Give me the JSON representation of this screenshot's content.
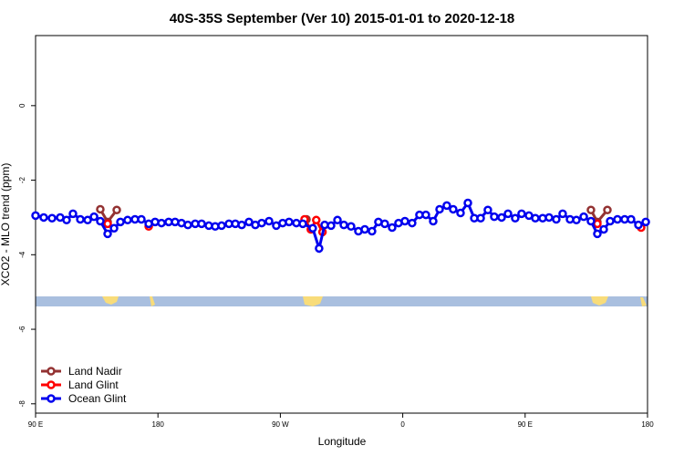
{
  "chart_data": {
    "type": "line",
    "title": "40S-35S September (Ver 10)   2015-01-01 to 2020-12-18",
    "x_label": "Longitude",
    "y_label": "XCO2 - MLO trend (ppm)",
    "xlim": [
      90,
      540
    ],
    "ylim": [
      -8.25,
      1.88
    ],
    "xticks": [
      {
        "value": 90,
        "label": "90 E"
      },
      {
        "value": 180,
        "label": "180"
      },
      {
        "value": 270,
        "label": "90 W"
      },
      {
        "value": 360,
        "label": "0"
      },
      {
        "value": 450,
        "label": "90 E"
      },
      {
        "value": 540,
        "label": "180"
      }
    ],
    "yticks": [
      0,
      -2,
      -4,
      -6,
      -8
    ],
    "legend": "bottom-left",
    "series": [
      {
        "name": "Land Nadir",
        "color": "#933232",
        "x": [
          137.6,
          143,
          149.7,
          220,
          289.2,
          400,
          498.4,
          503.1,
          510.5
        ],
        "values": [
          -2.78,
          -3.12,
          -2.8,
          null,
          -3.05,
          null,
          -2.8,
          -3.12,
          -2.8
        ]
      },
      {
        "name": "Land Glint",
        "color": "#ff0000",
        "x": [
          143,
          158,
          173.2,
          230,
          287.8,
          292.4,
          296.4,
          301,
          400,
          503.1,
          520,
          535.3
        ],
        "values": [
          -3.17,
          null,
          -3.24,
          null,
          -3.05,
          -3.32,
          -3.07,
          -3.39,
          null,
          -3.17,
          null,
          -3.27
        ]
      },
      {
        "name": "Ocean Glint",
        "color": "#0000ee",
        "x": [
          90,
          96,
          102.1,
          108.1,
          112.8,
          117.5,
          122.9,
          128.3,
          133,
          137.6,
          143,
          147.7,
          152.4,
          157.7,
          163.1,
          167.8,
          173.2,
          177.9,
          182.6,
          187.9,
          192.6,
          197.3,
          202,
          207.4,
          212.1,
          217.4,
          222.1,
          226.8,
          232.2,
          236.9,
          241.6,
          246.9,
          251.6,
          256.3,
          261.7,
          267,
          271.7,
          276.4,
          281.8,
          286.5,
          293.8,
          298.5,
          302.6,
          307.3,
          312,
          316.7,
          322,
          327.4,
          332.1,
          337.4,
          342.1,
          346.8,
          352.2,
          356.9,
          361.6,
          366.9,
          372.3,
          377,
          382.4,
          387.1,
          392.4,
          397.1,
          402.5,
          407.9,
          412.6,
          417.3,
          422.6,
          427.3,
          432.7,
          437.4,
          442.7,
          447.4,
          452.8,
          457.5,
          462.9,
          467.6,
          472.9,
          477.6,
          483,
          487.7,
          493.1,
          498.4,
          503.1,
          507.8,
          512.5,
          517.9,
          523.2,
          527.9,
          533.3,
          538.7
        ],
        "values": [
          -2.95,
          -3.0,
          -3.02,
          -3.0,
          -3.07,
          -2.9,
          -3.05,
          -3.07,
          -2.98,
          -3.1,
          -3.44,
          -3.29,
          -3.12,
          -3.07,
          -3.05,
          -3.05,
          -3.17,
          -3.12,
          -3.15,
          -3.12,
          -3.12,
          -3.15,
          -3.2,
          -3.17,
          -3.17,
          -3.22,
          -3.24,
          -3.22,
          -3.17,
          -3.17,
          -3.2,
          -3.12,
          -3.2,
          -3.15,
          -3.1,
          -3.22,
          -3.15,
          -3.12,
          -3.15,
          -3.17,
          -3.29,
          -3.83,
          -3.2,
          -3.22,
          -3.07,
          -3.2,
          -3.24,
          -3.37,
          -3.32,
          -3.37,
          -3.12,
          -3.17,
          -3.27,
          -3.15,
          -3.1,
          -3.15,
          -2.93,
          -2.93,
          -3.1,
          -2.78,
          -2.68,
          -2.78,
          -2.88,
          -2.61,
          -3.02,
          -3.02,
          -2.8,
          -2.98,
          -3.0,
          -2.9,
          -3.02,
          -2.9,
          -2.95,
          -3.02,
          -3.02,
          -3.0,
          -3.05,
          -2.9,
          -3.05,
          -3.07,
          -2.98,
          -3.1,
          -3.44,
          -3.32,
          -3.1,
          -3.05,
          -3.05,
          -3.05,
          -3.2,
          -3.12
        ]
      }
    ]
  }
}
